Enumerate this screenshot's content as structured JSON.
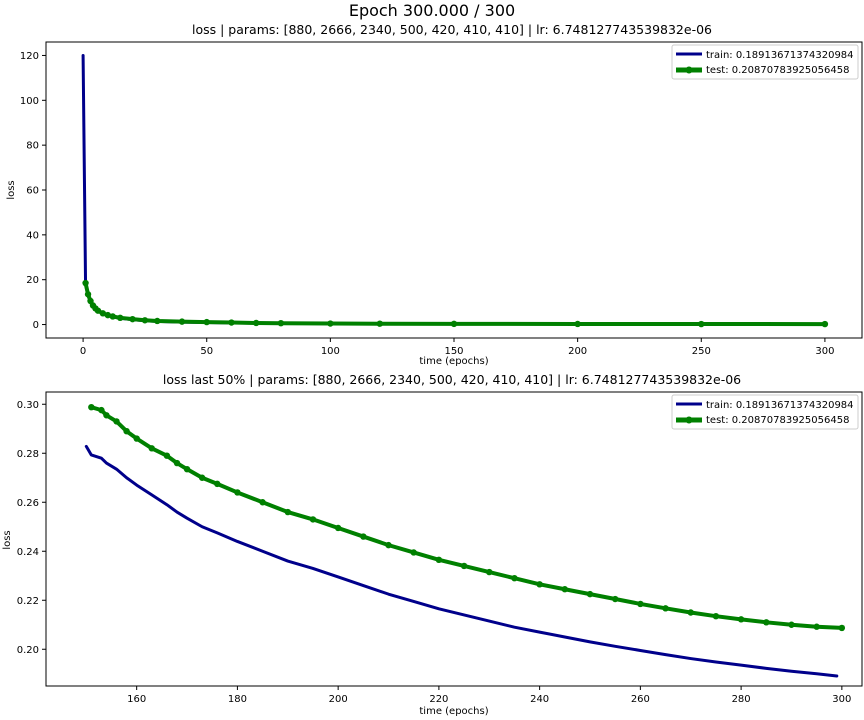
{
  "figure": {
    "suptitle": "Epoch 300.000 / 300"
  },
  "colors": {
    "train": "#00008b",
    "test": "#008000"
  },
  "chart_data": [
    {
      "type": "line",
      "title": "loss  | params: [880, 2666, 2340, 500, 420, 410, 410] | lr: 6.748127743539832e-06",
      "xlabel": "time (epochs)",
      "ylabel": "loss",
      "xlim": [
        -15,
        315
      ],
      "ylim": [
        -6,
        126
      ],
      "xticks": [
        0,
        50,
        100,
        150,
        200,
        250,
        300
      ],
      "yticks": [
        0,
        20,
        40,
        60,
        80,
        100,
        120
      ],
      "grid": false,
      "legend": "top-right",
      "series": [
        {
          "name": "train: 0.18913671374320984",
          "color": "#00008b",
          "marker": "none",
          "x": [
            0,
            1,
            2,
            3,
            4,
            5,
            6,
            8,
            10,
            12,
            15,
            20,
            25,
            30,
            40,
            50,
            60,
            70,
            80,
            100,
            120,
            150,
            200,
            250,
            300
          ],
          "values": [
            120,
            18,
            13,
            10,
            8,
            7,
            6,
            4.8,
            4,
            3.4,
            2.8,
            2.2,
            1.7,
            1.4,
            1.1,
            0.9,
            0.75,
            0.6,
            0.5,
            0.4,
            0.33,
            0.28,
            0.23,
            0.21,
            0.19
          ]
        },
        {
          "name": "test: 0.20870783925056458",
          "color": "#008000",
          "marker": "circle",
          "x": [
            1,
            2,
            3,
            4,
            5,
            6,
            8,
            10,
            12,
            15,
            20,
            25,
            30,
            40,
            50,
            60,
            70,
            80,
            100,
            120,
            150,
            200,
            250,
            300
          ],
          "values": [
            18.5,
            13.5,
            10.5,
            8.5,
            7.2,
            6.2,
            5,
            4.2,
            3.6,
            3,
            2.4,
            1.9,
            1.6,
            1.3,
            1.1,
            0.9,
            0.7,
            0.6,
            0.45,
            0.38,
            0.3,
            0.25,
            0.22,
            0.21
          ]
        }
      ]
    },
    {
      "type": "line",
      "title": "loss last 50% | params: [880, 2666, 2340, 500, 420, 410, 410] | lr: 6.748127743539832e-06",
      "xlabel": "time (epochs)",
      "ylabel": "loss",
      "xlim": [
        142,
        304
      ],
      "ylim": [
        0.185,
        0.305
      ],
      "xticks": [
        160,
        180,
        200,
        220,
        240,
        260,
        280,
        300
      ],
      "yticks": [
        0.2,
        0.22,
        0.24,
        0.26,
        0.28,
        0.3
      ],
      "ytick_labels": [
        "0.20",
        "0.22",
        "0.24",
        "0.26",
        "0.28",
        "0.30"
      ],
      "grid": false,
      "legend": "top-right",
      "series": [
        {
          "name": "train: 0.18913671374320984",
          "color": "#00008b",
          "marker": "none",
          "x": [
            150,
            151,
            153,
            154,
            156,
            158,
            160,
            163,
            166,
            168,
            170,
            173,
            176,
            180,
            185,
            190,
            195,
            200,
            205,
            210,
            215,
            220,
            225,
            230,
            235,
            240,
            245,
            250,
            255,
            260,
            265,
            270,
            275,
            280,
            285,
            290,
            295,
            299
          ],
          "values": [
            0.2828,
            0.2793,
            0.278,
            0.276,
            0.2735,
            0.27,
            0.267,
            0.263,
            0.259,
            0.256,
            0.2535,
            0.25,
            0.2475,
            0.244,
            0.24,
            0.236,
            0.233,
            0.2295,
            0.226,
            0.2225,
            0.2195,
            0.2165,
            0.214,
            0.2115,
            0.209,
            0.207,
            0.205,
            0.203,
            0.2012,
            0.1995,
            0.1978,
            0.1962,
            0.1948,
            0.1935,
            0.1922,
            0.191,
            0.19,
            0.1891
          ]
        },
        {
          "name": "test: 0.20870783925056458",
          "color": "#008000",
          "marker": "circle",
          "x": [
            151,
            153,
            154,
            156,
            158,
            160,
            163,
            166,
            168,
            170,
            173,
            176,
            180,
            185,
            190,
            195,
            200,
            205,
            210,
            215,
            220,
            225,
            230,
            235,
            240,
            245,
            250,
            255,
            260,
            265,
            270,
            275,
            280,
            285,
            290,
            295,
            300
          ],
          "values": [
            0.2988,
            0.2976,
            0.2955,
            0.293,
            0.289,
            0.286,
            0.282,
            0.279,
            0.276,
            0.2735,
            0.27,
            0.2675,
            0.264,
            0.26,
            0.256,
            0.253,
            0.2495,
            0.246,
            0.2425,
            0.2395,
            0.2365,
            0.234,
            0.2315,
            0.229,
            0.2265,
            0.2245,
            0.2225,
            0.2205,
            0.2185,
            0.2167,
            0.215,
            0.2135,
            0.2122,
            0.211,
            0.21,
            0.2092,
            0.2087
          ]
        }
      ]
    }
  ]
}
